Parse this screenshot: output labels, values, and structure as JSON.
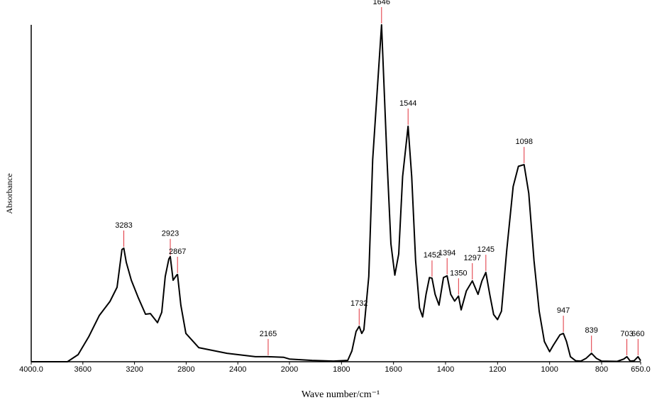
{
  "chart_data": {
    "type": "line",
    "x_label": "Wave number/cm⁻¹",
    "y_label": "Absorbance",
    "xlim": [
      4000,
      650
    ],
    "x_scale_break": 2000,
    "ylim": [
      0,
      1
    ],
    "xticks": [
      {
        "value": 4000,
        "label": "4000.0"
      },
      3600,
      3200,
      2800,
      2400,
      2000,
      1800,
      1600,
      1400,
      1200,
      1000,
      800,
      {
        "value": 650,
        "label": "650.0"
      }
    ],
    "peaks": [
      3283,
      2923,
      2867,
      2165,
      1732,
      1646,
      1544,
      1452,
      1394,
      1350,
      1297,
      1245,
      1098,
      947,
      839,
      703,
      660
    ],
    "peak_color": "#e0303a",
    "series": [
      {
        "color": "#000000",
        "x": [
          4000,
          3720,
          3637,
          3555,
          3473,
          3390,
          3335,
          3297,
          3283,
          3264,
          3225,
          3170,
          3115,
          3077,
          3022,
          2989,
          2962,
          2934,
          2923,
          2901,
          2874,
          2867,
          2841,
          2802,
          2703,
          2484,
          2264,
          2165,
          2044,
          2000,
          1913,
          1831,
          1776,
          1760,
          1744,
          1732,
          1722,
          1714,
          1695,
          1680,
          1646,
          1625,
          1610,
          1595,
          1580,
          1565,
          1544,
          1530,
          1515,
          1500,
          1488,
          1475,
          1462,
          1452,
          1440,
          1425,
          1408,
          1394,
          1380,
          1365,
          1350,
          1340,
          1320,
          1297,
          1275,
          1260,
          1245,
          1230,
          1215,
          1200,
          1185,
          1165,
          1140,
          1120,
          1098,
          1080,
          1060,
          1040,
          1020,
          1000,
          985,
          960,
          947,
          935,
          920,
          900,
          880,
          860,
          839,
          820,
          800,
          740,
          715,
          703,
          690,
          675,
          660,
          650
        ],
        "values": [
          0,
          0,
          0.021,
          0.074,
          0.137,
          0.179,
          0.221,
          0.333,
          0.337,
          0.295,
          0.242,
          0.189,
          0.141,
          0.143,
          0.116,
          0.147,
          0.253,
          0.305,
          0.312,
          0.242,
          0.257,
          0.259,
          0.168,
          0.084,
          0.042,
          0.025,
          0.015,
          0.015,
          0.013,
          0.008,
          0.004,
          0.002,
          0.004,
          0.032,
          0.09,
          0.105,
          0.084,
          0.095,
          0.253,
          0.6,
          1.0,
          0.6,
          0.35,
          0.257,
          0.32,
          0.55,
          0.699,
          0.55,
          0.3,
          0.16,
          0.133,
          0.2,
          0.25,
          0.248,
          0.2,
          0.168,
          0.25,
          0.255,
          0.2,
          0.18,
          0.195,
          0.154,
          0.21,
          0.24,
          0.2,
          0.24,
          0.265,
          0.2,
          0.14,
          0.125,
          0.15,
          0.33,
          0.52,
          0.58,
          0.585,
          0.5,
          0.3,
          0.15,
          0.06,
          0.03,
          0.05,
          0.08,
          0.084,
          0.06,
          0.015,
          0.003,
          0.002,
          0.01,
          0.025,
          0.01,
          0.002,
          0.001,
          0.008,
          0.015,
          0.002,
          0.003,
          0.015,
          0.003
        ]
      }
    ]
  }
}
